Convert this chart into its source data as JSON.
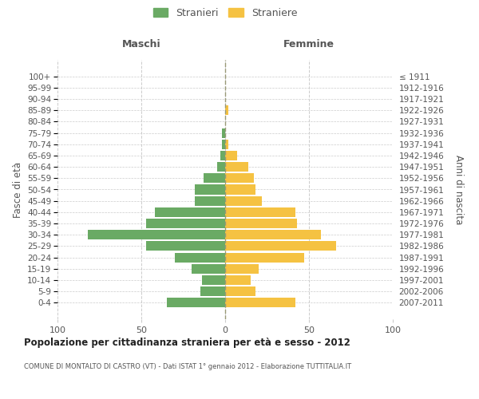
{
  "age_groups": [
    "100+",
    "95-99",
    "90-94",
    "85-89",
    "80-84",
    "75-79",
    "70-74",
    "65-69",
    "60-64",
    "55-59",
    "50-54",
    "45-49",
    "40-44",
    "35-39",
    "30-34",
    "25-29",
    "20-24",
    "15-19",
    "10-14",
    "5-9",
    "0-4"
  ],
  "birth_years": [
    "≤ 1911",
    "1912-1916",
    "1917-1921",
    "1922-1926",
    "1927-1931",
    "1932-1936",
    "1937-1941",
    "1942-1946",
    "1947-1951",
    "1952-1956",
    "1957-1961",
    "1962-1966",
    "1967-1971",
    "1972-1976",
    "1977-1981",
    "1982-1986",
    "1987-1991",
    "1992-1996",
    "1997-2001",
    "2002-2006",
    "2007-2011"
  ],
  "males": [
    0,
    0,
    0,
    0,
    0,
    2,
    2,
    3,
    5,
    13,
    18,
    18,
    42,
    47,
    82,
    47,
    30,
    20,
    14,
    15,
    35
  ],
  "females": [
    0,
    0,
    0,
    2,
    0,
    0,
    2,
    7,
    14,
    17,
    18,
    22,
    42,
    43,
    57,
    66,
    47,
    20,
    15,
    18,
    42
  ],
  "male_color": "#6aaa64",
  "female_color": "#f5c242",
  "bar_height": 0.85,
  "xlim": [
    -100,
    100
  ],
  "xticks": [
    -100,
    -50,
    0,
    50,
    100
  ],
  "xticklabels": [
    "100",
    "50",
    "0",
    "50",
    "100"
  ],
  "title": "Popolazione per cittadinanza straniera per età e sesso - 2012",
  "subtitle": "COMUNE DI MONTALTO DI CASTRO (VT) - Dati ISTAT 1° gennaio 2012 - Elaborazione TUTTITALIA.IT",
  "ylabel_left": "Fasce di età",
  "ylabel_right": "Anni di nascita",
  "legend_male": "Stranieri",
  "legend_female": "Straniere",
  "header_male": "Maschi",
  "header_female": "Femmine",
  "background_color": "#ffffff",
  "grid_color": "#cccccc",
  "text_color": "#555555",
  "dashed_line_color": "#999977"
}
